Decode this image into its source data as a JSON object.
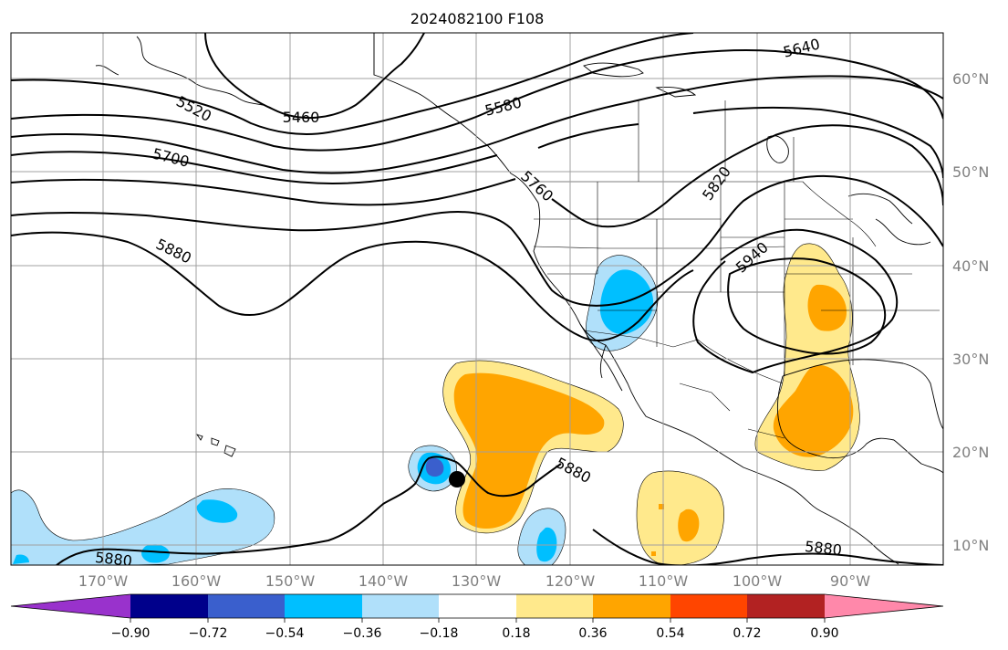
{
  "title": "2024082100 F108",
  "map": {
    "lat_labels": [
      "60°N",
      "50°N",
      "40°N",
      "30°N",
      "20°N",
      "10°N"
    ],
    "lon_labels": [
      "170°W",
      "160°W",
      "150°W",
      "140°W",
      "130°W",
      "120°W",
      "110°W",
      "100°W",
      "90°W"
    ],
    "contour_labels": [
      "5640",
      "5520",
      "5460",
      "5580",
      "5700",
      "5760",
      "5820",
      "5880",
      "5940",
      "5880",
      "5880",
      "5880"
    ]
  },
  "colors": {
    "neg_090": "#9932cc",
    "neg_072": "#00008b",
    "neg_054": "#3a5fcd",
    "neg_036": "#00bfff",
    "neg_018": "#b0e0fa",
    "zero": "#ffffff",
    "pos_018": "#ffe98c",
    "pos_036": "#ffa500",
    "pos_054": "#ff4500",
    "pos_072": "#b22222",
    "pos_090": "#ff88aa"
  },
  "colorbar": {
    "tick_labels": [
      "−0.90",
      "−0.72",
      "−0.54",
      "−0.36",
      "−0.18",
      "0.18",
      "0.36",
      "0.54",
      "0.72",
      "0.90"
    ]
  }
}
